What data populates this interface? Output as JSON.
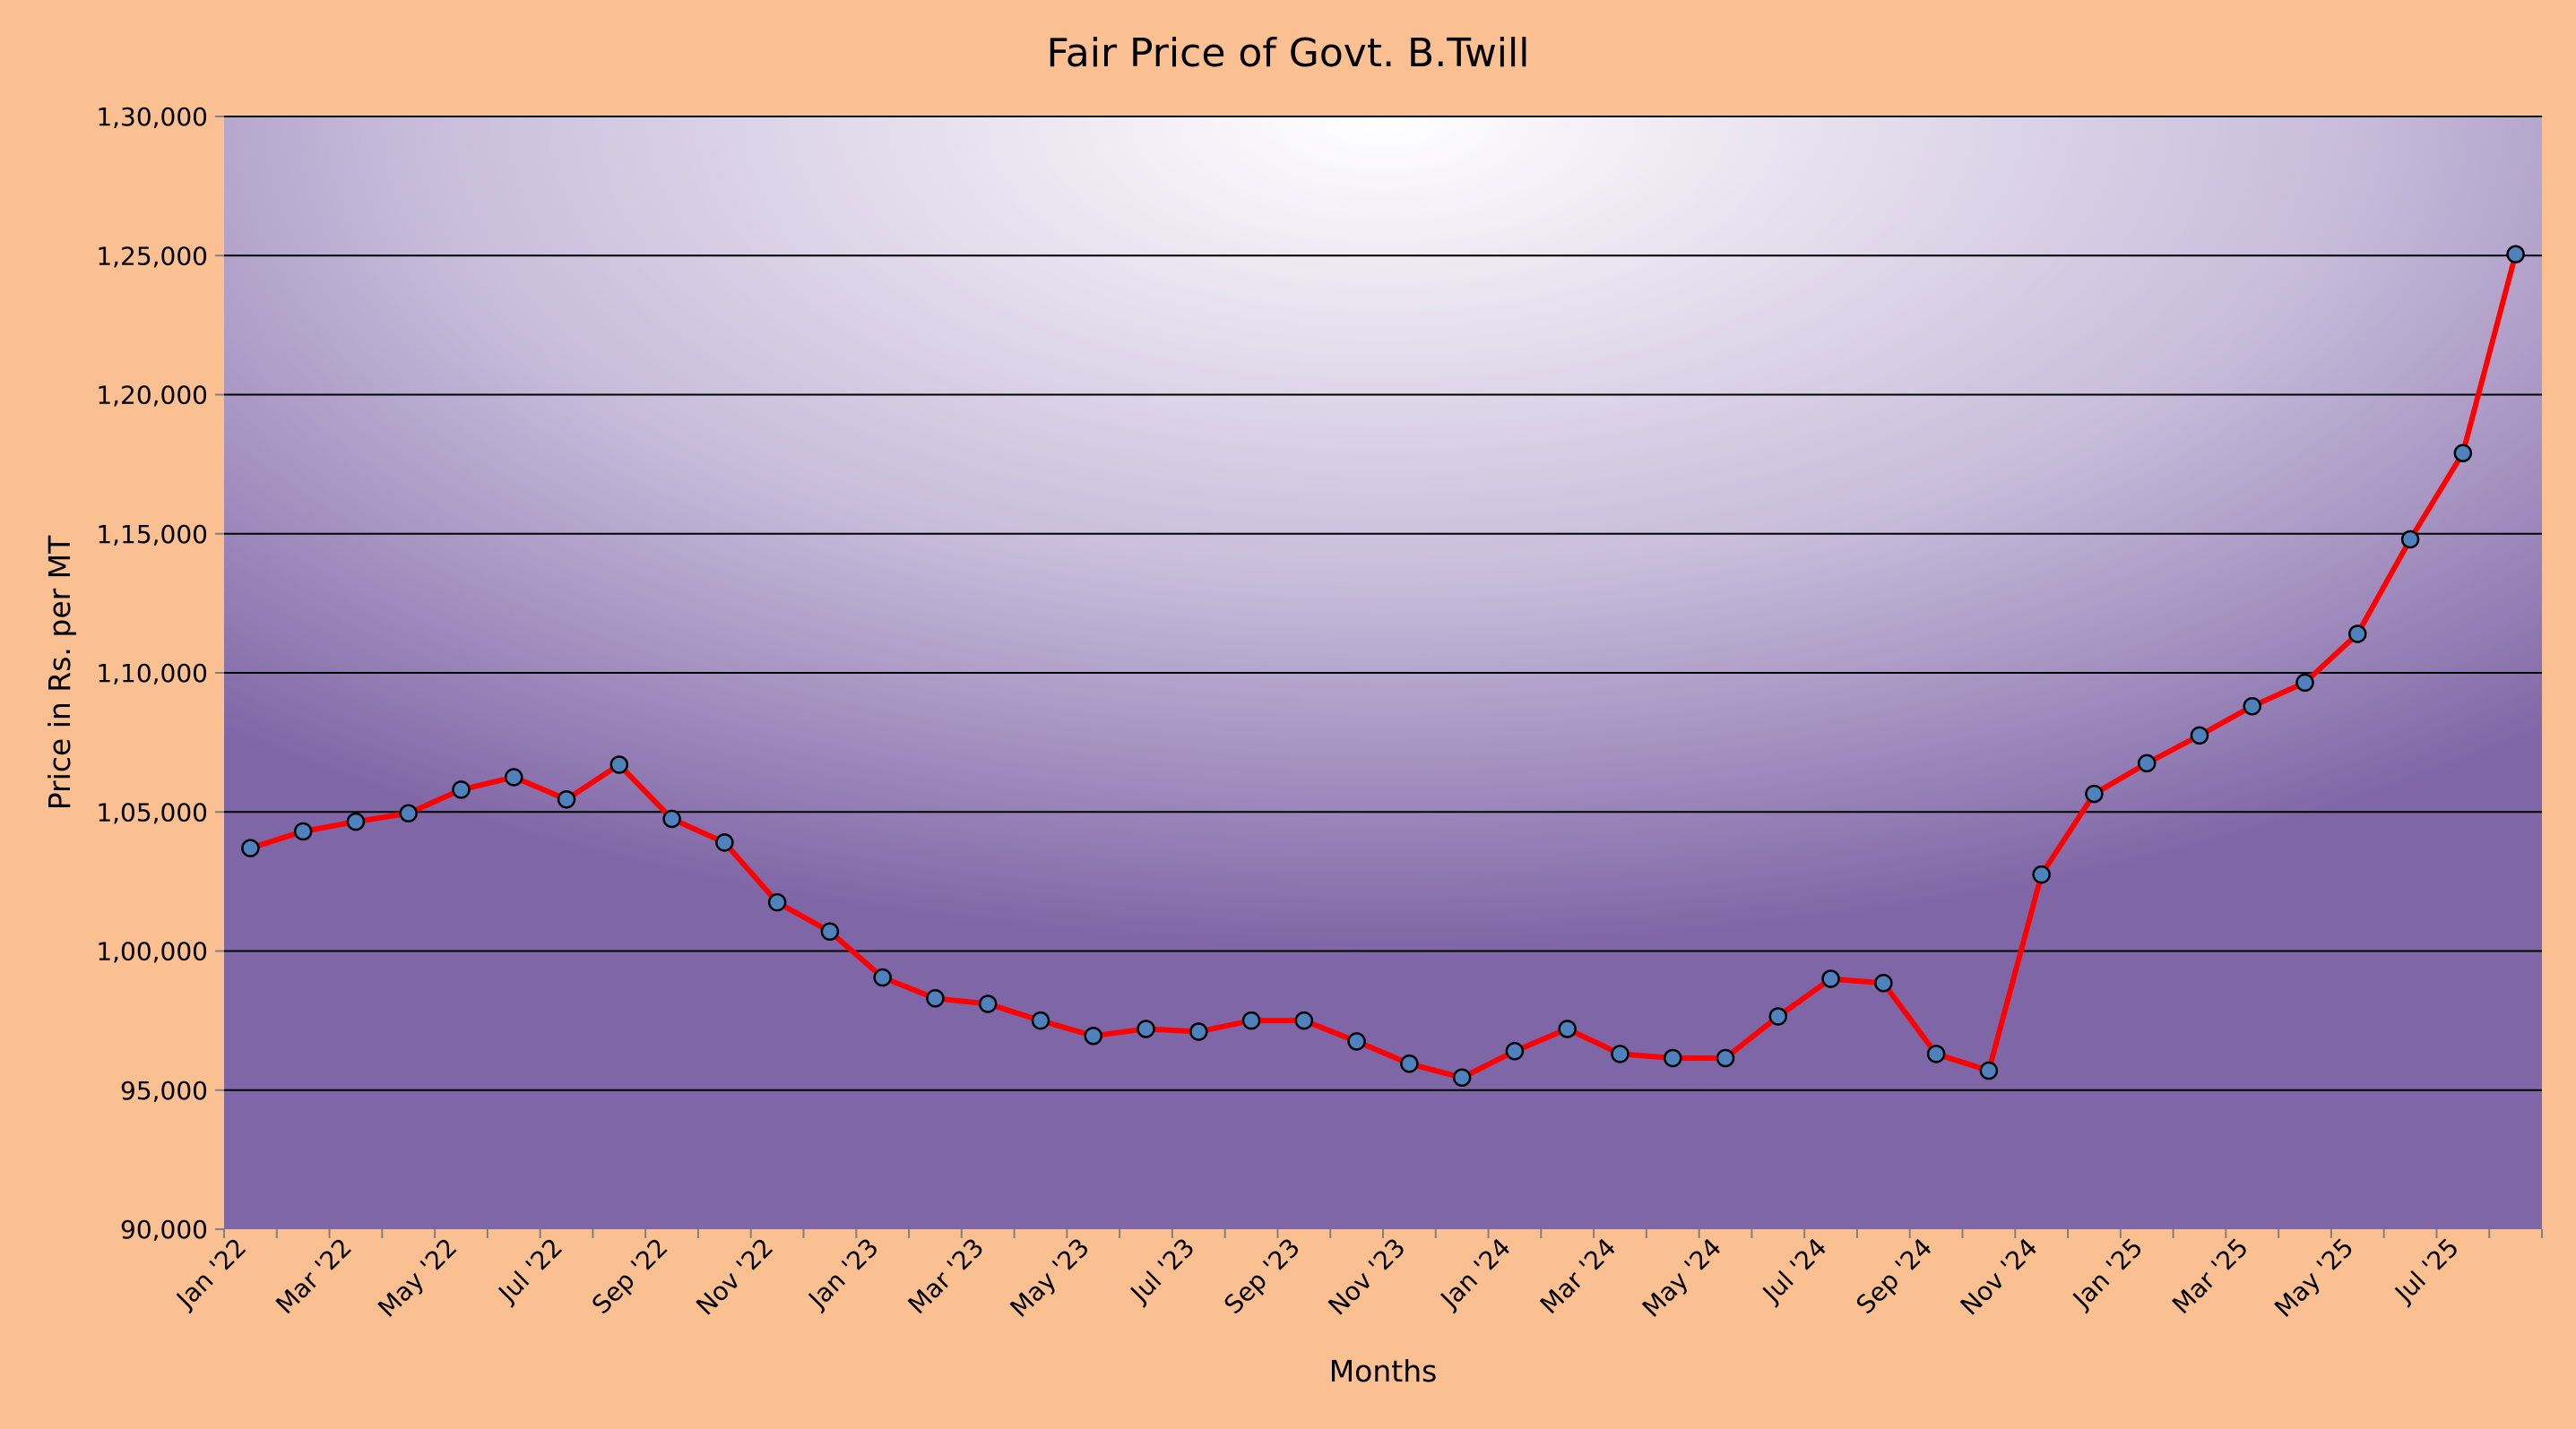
{
  "chart_data": {
    "type": "line",
    "title": "Fair Price of Govt. B.Twill",
    "xlabel": "Months",
    "ylabel": "Price in Rs. per MT",
    "ylim": [
      90000,
      130000
    ],
    "y_ticks": [
      90000,
      95000,
      100000,
      105000,
      110000,
      115000,
      120000,
      125000,
      130000
    ],
    "y_tick_labels": [
      "90,000",
      "95,000",
      "1,00,000",
      "1,05,000",
      "1,10,000",
      "1,15,000",
      "1,20,000",
      "1,25,000",
      "1,30,000"
    ],
    "x_tick_labels": [
      "Jan '22",
      "Mar '22",
      "May '22",
      "Jul '22",
      "Sep '22",
      "Nov '22",
      "Jan '23",
      "Mar '23",
      "May '23",
      "Jul '23",
      "Sep '23",
      "Nov '23",
      "Jan '24",
      "Mar '24",
      "May '24",
      "Jul '24",
      "Sep '24",
      "Nov '24",
      "Jan '25",
      "Mar '25",
      "May '25",
      "Jul '25"
    ],
    "grid": true,
    "legend": "none",
    "colors": {
      "line": "#ff0000",
      "marker_fill": "#4f81bd",
      "marker_stroke": "#000000",
      "page_background": "#fac091",
      "plot_edge": "#7f66a6",
      "plot_center": "#ffffff",
      "grid": "#000000"
    },
    "series": [
      {
        "x": [
          "Jan '22",
          "Feb '22",
          "Mar '22",
          "Apr '22",
          "May '22",
          "Jun '22",
          "Jul '22",
          "Aug '22",
          "Sep '22",
          "Oct '22",
          "Nov '22",
          "Dec '22",
          "Jan '23",
          "Feb '23",
          "Mar '23",
          "Apr '23",
          "May '23",
          "Jun '23",
          "Jul '23",
          "Aug '23",
          "Sep '23",
          "Oct '23",
          "Nov '23",
          "Dec '23",
          "Jan '24",
          "Feb '24",
          "Mar '24",
          "Apr '24",
          "May '24",
          "Jun '24",
          "Jul '24",
          "Aug '24",
          "Sep '24",
          "Oct '24",
          "Nov '24",
          "Dec '24",
          "Jan '25",
          "Feb '25",
          "Mar '25",
          "Apr '25",
          "May '25",
          "Jun '25",
          "Jul '25",
          "Aug '25"
        ],
        "values": [
          103700,
          104300,
          104650,
          104950,
          105800,
          106250,
          105450,
          106700,
          104750,
          103900,
          101750,
          100700,
          99050,
          98300,
          98100,
          97500,
          96950,
          97200,
          97100,
          97500,
          97500,
          96750,
          95950,
          95450,
          96400,
          97200,
          96300,
          96150,
          96150,
          97650,
          99000,
          98850,
          96300,
          95700,
          102750,
          105650,
          106750,
          107750,
          108800,
          109650,
          111400,
          114800,
          117900,
          125050
        ]
      }
    ]
  }
}
